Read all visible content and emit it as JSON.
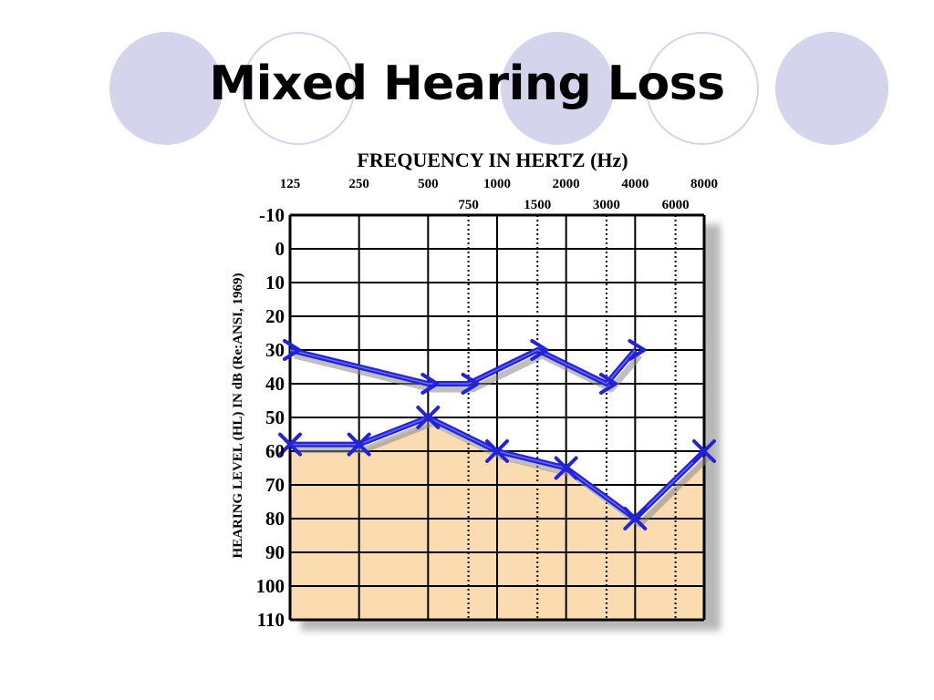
{
  "slide": {
    "title": "Mixed Hearing Loss",
    "decor_colors": {
      "circle_fill": "#d4d4ec"
    }
  },
  "chart_data": {
    "type": "line",
    "title": "FREQUENCY IN HERTZ (Hz)",
    "xlabel": "FREQUENCY IN HERTZ (Hz)",
    "ylabel": "HEARING LEVEL (HL) IN dB (Re:ANSI, 1969)",
    "x_scale": "log2",
    "x_ticks_major": [
      "125",
      "250",
      "500",
      "1000",
      "2000",
      "4000",
      "8000"
    ],
    "x_ticks_minor": [
      "750",
      "1500",
      "3000",
      "6000"
    ],
    "y_ticks": [
      "-10",
      "0",
      "10",
      "20",
      "30",
      "40",
      "50",
      "60",
      "70",
      "80",
      "90",
      "100",
      "110"
    ],
    "ylim": [
      -10,
      110
    ],
    "y_inverted": true,
    "grid": true,
    "series": [
      {
        "marker": "arrow",
        "x": [
          125,
          500,
          750,
          1500,
          3000,
          4000
        ],
        "y": [
          30,
          40,
          40,
          30,
          40,
          30
        ]
      },
      {
        "marker": "x",
        "x": [
          125,
          250,
          500,
          1000,
          2000,
          4000,
          8000
        ],
        "y": [
          58,
          58,
          50,
          60,
          65,
          80,
          60
        ]
      }
    ],
    "colors": {
      "line": "#2222dd",
      "shade": "#fbdcb0"
    }
  }
}
